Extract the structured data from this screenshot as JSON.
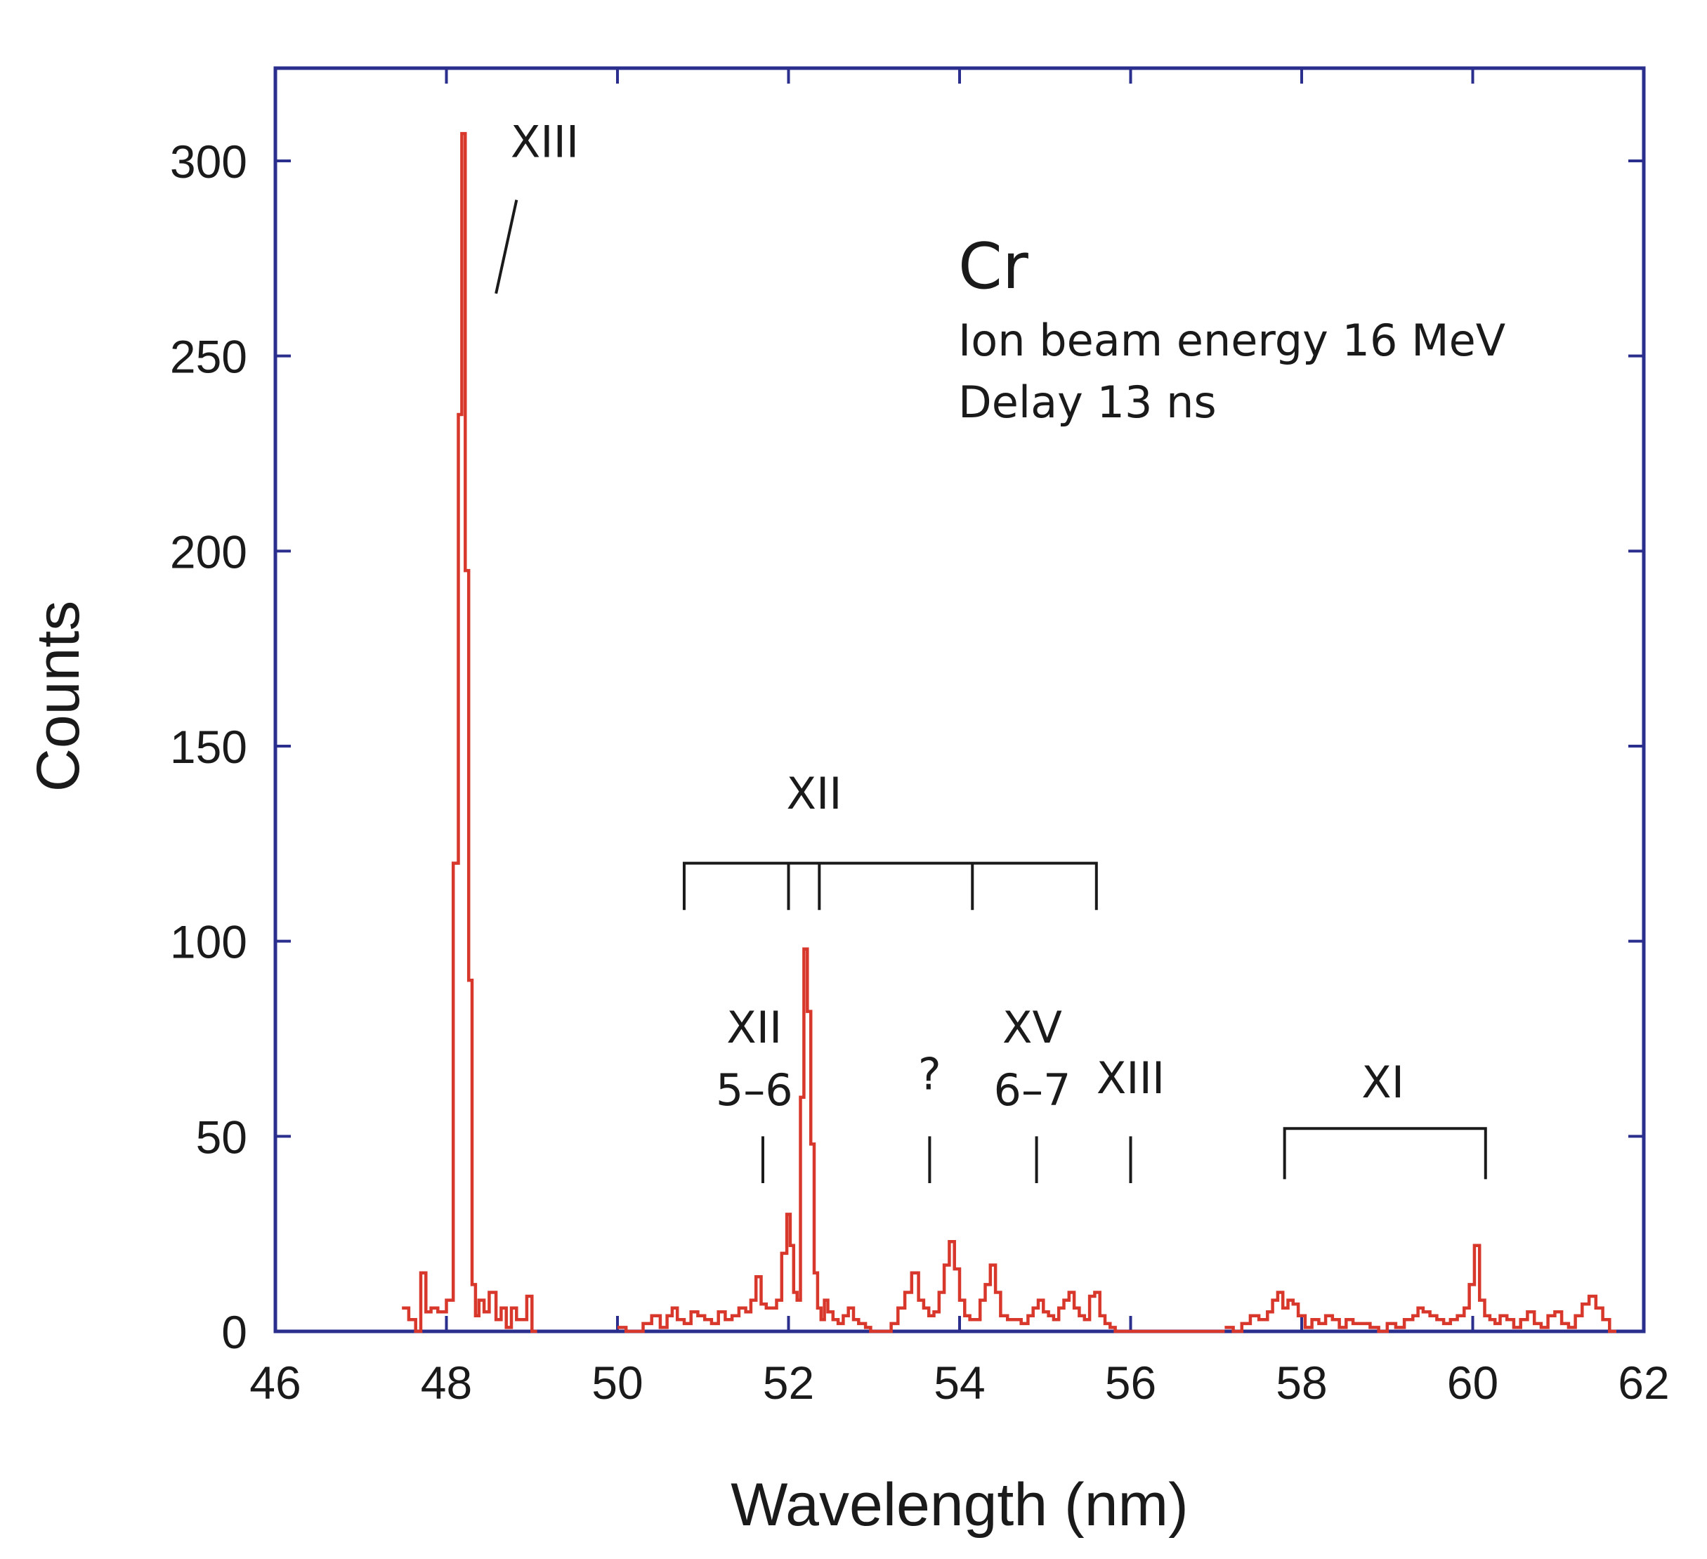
{
  "chart_data": {
    "type": "line",
    "style": "step",
    "title": "",
    "xlabel": "Wavelength (nm)",
    "ylabel": "Counts",
    "xlim": [
      46,
      62
    ],
    "ylim": [
      0,
      324
    ],
    "xticks": [
      46,
      48,
      50,
      52,
      54,
      56,
      58,
      60,
      62
    ],
    "xtick_labels": [
      "46",
      "48",
      "50",
      "52",
      "54",
      "56",
      "58",
      "60",
      "62"
    ],
    "yticks": [
      0,
      50,
      100,
      150,
      200,
      250,
      300
    ],
    "ytick_labels": [
      "0",
      "50",
      "100",
      "150",
      "200",
      "250",
      "300"
    ],
    "colors": {
      "axis": "#2a2e8c",
      "series": "#d8382c",
      "annotation": "#1a1a1a"
    },
    "series": [
      {
        "name": "Cr spectrum",
        "segments": [
          {
            "x": [
              47.48,
              47.56,
              47.64,
              47.7,
              47.76,
              47.82,
              47.9,
              48.0,
              48.08,
              48.14,
              48.18,
              48.22,
              48.26,
              48.3,
              48.34,
              48.38,
              48.44,
              48.5,
              48.58,
              48.64,
              48.7,
              48.76,
              48.82,
              48.88,
              48.94,
              49.0
            ],
            "y": [
              6,
              3,
              0,
              15,
              5,
              6,
              5,
              8,
              120,
              235,
              307,
              195,
              90,
              12,
              4,
              8,
              5,
              10,
              3,
              6,
              1,
              6,
              3,
              3,
              9,
              0
            ]
          },
          {
            "x": [
              50.0,
              50.1,
              50.2,
              50.3,
              50.4,
              50.5,
              50.58,
              50.64,
              50.7,
              50.78,
              50.86,
              50.94,
              51.02,
              51.1,
              51.18,
              51.26,
              51.34,
              51.42,
              51.5,
              51.56,
              51.62,
              51.68,
              51.74,
              51.8,
              51.86,
              51.92,
              51.98,
              52.02,
              52.06,
              52.1,
              52.14,
              52.18,
              52.22,
              52.26,
              52.3,
              52.34,
              52.38,
              52.42,
              52.46,
              52.52,
              52.58,
              52.64,
              52.7,
              52.76,
              52.82,
              52.9,
              52.96,
              53.04,
              53.12,
              53.2,
              53.28,
              53.36,
              53.44,
              53.52,
              53.58,
              53.64,
              53.7,
              53.76,
              53.82,
              53.88,
              53.94,
              54.0,
              54.06,
              54.12,
              54.18,
              54.24,
              54.3,
              54.36,
              54.42,
              54.48,
              54.56,
              54.64,
              54.72,
              54.8,
              54.86,
              54.92,
              54.98,
              55.04,
              55.1,
              55.16,
              55.22,
              55.28,
              55.34,
              55.4,
              55.46,
              55.52,
              55.58,
              55.64,
              55.7,
              55.76,
              55.82,
              55.88,
              55.94,
              56.0,
              56.06,
              56.12,
              56.18,
              56.24,
              56.3,
              56.36,
              56.42,
              56.5,
              56.6,
              56.7,
              56.8,
              56.9,
              57.0
            ],
            "y": [
              1,
              0,
              0,
              2,
              4,
              1,
              4,
              6,
              3,
              2,
              5,
              4,
              3,
              2,
              5,
              3,
              4,
              6,
              5,
              8,
              14,
              7,
              6,
              6,
              8,
              20,
              30,
              22,
              10,
              8,
              60,
              98,
              82,
              48,
              15,
              6,
              3,
              8,
              5,
              3,
              2,
              4,
              6,
              3,
              2,
              1,
              0,
              0,
              0,
              2,
              6,
              10,
              15,
              8,
              6,
              4,
              5,
              10,
              17,
              23,
              16,
              8,
              4,
              3,
              3,
              8,
              12,
              17,
              10,
              4,
              3,
              3,
              2,
              4,
              6,
              8,
              5,
              4,
              3,
              6,
              8,
              10,
              6,
              4,
              3,
              9,
              10,
              4,
              2,
              1,
              0,
              0,
              0,
              0,
              0,
              0,
              0,
              0,
              0,
              0,
              0,
              0,
              0,
              0,
              0,
              0,
              0
            ]
          },
          {
            "x": [
              57.1,
              57.2,
              57.3,
              57.4,
              57.5,
              57.6,
              57.66,
              57.72,
              57.78,
              57.84,
              57.9,
              57.96,
              58.04,
              58.12,
              58.2,
              58.28,
              58.36,
              58.44,
              58.52,
              58.6,
              58.7,
              58.8,
              58.9,
              59.0,
              59.1,
              59.2,
              59.3,
              59.36,
              59.42,
              59.5,
              59.58,
              59.66,
              59.74,
              59.82,
              59.9,
              59.96,
              60.02,
              60.08,
              60.14,
              60.2,
              60.26,
              60.32,
              60.4,
              60.48,
              60.56,
              60.64,
              60.72,
              60.8,
              60.88,
              60.96,
              61.04,
              61.12,
              61.2,
              61.28,
              61.36,
              61.44,
              61.52,
              61.6
            ],
            "y": [
              1,
              0,
              2,
              4,
              3,
              5,
              8,
              10,
              6,
              8,
              7,
              4,
              1,
              3,
              2,
              4,
              3,
              1,
              3,
              2,
              2,
              1,
              0,
              2,
              1,
              3,
              4,
              6,
              5,
              4,
              3,
              2,
              3,
              4,
              6,
              12,
              22,
              8,
              4,
              3,
              2,
              4,
              3,
              1,
              3,
              5,
              2,
              1,
              4,
              5,
              2,
              1,
              4,
              7,
              9,
              6,
              3,
              0
            ]
          }
        ]
      }
    ],
    "annotations": {
      "element": "Cr",
      "info_lines": [
        "Ion beam energy 16 MeV",
        "Delay 13 ns"
      ],
      "labels": [
        {
          "id": "xiii-main",
          "text": "XIII",
          "x": 49.15,
          "y": 301,
          "anchor": "middle"
        },
        {
          "id": "xii-bracket-label",
          "text": "XII",
          "x": 52.3,
          "y": 134,
          "anchor": "middle"
        },
        {
          "id": "xii-56",
          "text": "XII",
          "x": 51.6,
          "y": 74,
          "anchor": "middle"
        },
        {
          "id": "xii-56-trans",
          "text": "5–6",
          "x": 51.6,
          "y": 58,
          "anchor": "middle"
        },
        {
          "id": "question",
          "text": "?",
          "x": 53.65,
          "y": 62,
          "anchor": "middle"
        },
        {
          "id": "xv",
          "text": "XV",
          "x": 54.85,
          "y": 74,
          "anchor": "middle"
        },
        {
          "id": "xv-trans",
          "text": "6–7",
          "x": 54.85,
          "y": 58,
          "anchor": "middle"
        },
        {
          "id": "xiii-56",
          "text": "XIII",
          "x": 56.0,
          "y": 61,
          "anchor": "middle"
        },
        {
          "id": "xi",
          "text": "XI",
          "x": 58.95,
          "y": 60,
          "anchor": "middle"
        }
      ],
      "pointer_line": {
        "x1": 48.58,
        "y1": 266,
        "x2": 48.82,
        "y2": 290
      },
      "markers": [
        {
          "x": 51.7,
          "y_bottom": 38,
          "y_top": 50
        },
        {
          "x": 53.65,
          "y_bottom": 38,
          "y_top": 50
        },
        {
          "x": 54.9,
          "y_bottom": 38,
          "y_top": 50
        },
        {
          "x": 56.0,
          "y_bottom": 38,
          "y_top": 50
        }
      ],
      "brackets": [
        {
          "id": "xii-bracket",
          "x_start": 50.78,
          "x_end": 55.6,
          "y": 120,
          "y_drop": 108,
          "inner_ticks": [
            52.0,
            52.36,
            54.15
          ]
        },
        {
          "id": "xi-bracket",
          "x_start": 57.8,
          "x_end": 60.15,
          "y": 52,
          "y_drop": 39,
          "inner_ticks": []
        }
      ]
    }
  }
}
